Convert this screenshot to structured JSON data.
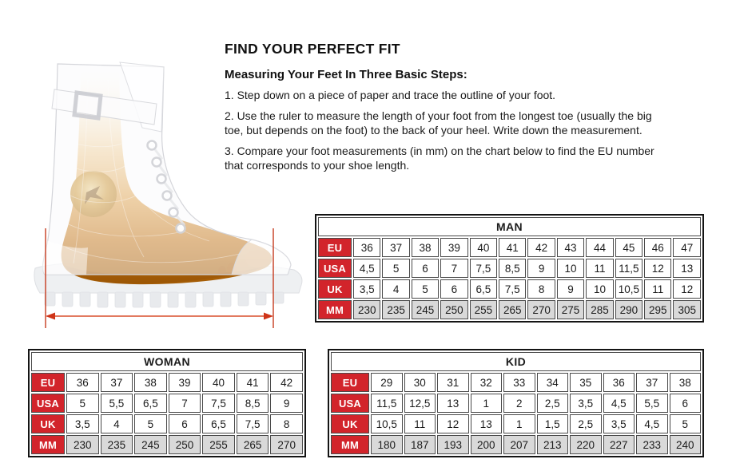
{
  "colors": {
    "accent_red": "#d2242b",
    "mm_row_bg": "#d9d9d9",
    "measure_line_red": "#c63b1f",
    "measure_arrow_red": "#d94f2b",
    "text": "#1a1a1a"
  },
  "illustration": {
    "name": "translucent-boot-with-foot-xray",
    "measurement_shown": "foot length between two red vertical lines with double-headed arrow"
  },
  "instructions": {
    "title": "FIND YOUR PERFECT FIT",
    "subtitle": "Measuring Your Feet In Three Basic Steps:",
    "steps": [
      "1. Step down on a piece of paper and trace the outline of your foot.",
      "2. Use the ruler to measure the length of your foot from the longest toe (usually the big\ntoe, but depends on the foot) to the back of your heel. Write down the measurement.",
      "3. Compare your foot measurements (in mm) on the chart below to find the EU number\nthat corresponds to your shoe length."
    ]
  },
  "tables": {
    "man": {
      "title": "MAN",
      "row_labels": [
        "EU",
        "USA",
        "UK",
        "MM"
      ],
      "rows": [
        [
          "36",
          "37",
          "38",
          "39",
          "40",
          "41",
          "42",
          "43",
          "44",
          "45",
          "46",
          "47"
        ],
        [
          "4,5",
          "5",
          "6",
          "7",
          "7,5",
          "8,5",
          "9",
          "10",
          "11",
          "11,5",
          "12",
          "13"
        ],
        [
          "3,5",
          "4",
          "5",
          "6",
          "6,5",
          "7,5",
          "8",
          "9",
          "10",
          "10,5",
          "11",
          "12"
        ],
        [
          "230",
          "235",
          "245",
          "250",
          "255",
          "265",
          "270",
          "275",
          "285",
          "290",
          "295",
          "305"
        ]
      ]
    },
    "woman": {
      "title": "WOMAN",
      "row_labels": [
        "EU",
        "USA",
        "UK",
        "MM"
      ],
      "rows": [
        [
          "36",
          "37",
          "38",
          "39",
          "40",
          "41",
          "42"
        ],
        [
          "5",
          "5,5",
          "6,5",
          "7",
          "7,5",
          "8,5",
          "9"
        ],
        [
          "3,5",
          "4",
          "5",
          "6",
          "6,5",
          "7,5",
          "8"
        ],
        [
          "230",
          "235",
          "245",
          "250",
          "255",
          "265",
          "270"
        ]
      ]
    },
    "kid": {
      "title": "KID",
      "row_labels": [
        "EU",
        "USA",
        "UK",
        "MM"
      ],
      "rows": [
        [
          "29",
          "30",
          "31",
          "32",
          "33",
          "34",
          "35",
          "36",
          "37",
          "38"
        ],
        [
          "11,5",
          "12,5",
          "13",
          "1",
          "2",
          "2,5",
          "3,5",
          "4,5",
          "5,5",
          "6"
        ],
        [
          "10,5",
          "11",
          "12",
          "13",
          "1",
          "1,5",
          "2,5",
          "3,5",
          "4,5",
          "5"
        ],
        [
          "180",
          "187",
          "193",
          "200",
          "207",
          "213",
          "220",
          "227",
          "233",
          "240"
        ]
      ]
    }
  }
}
